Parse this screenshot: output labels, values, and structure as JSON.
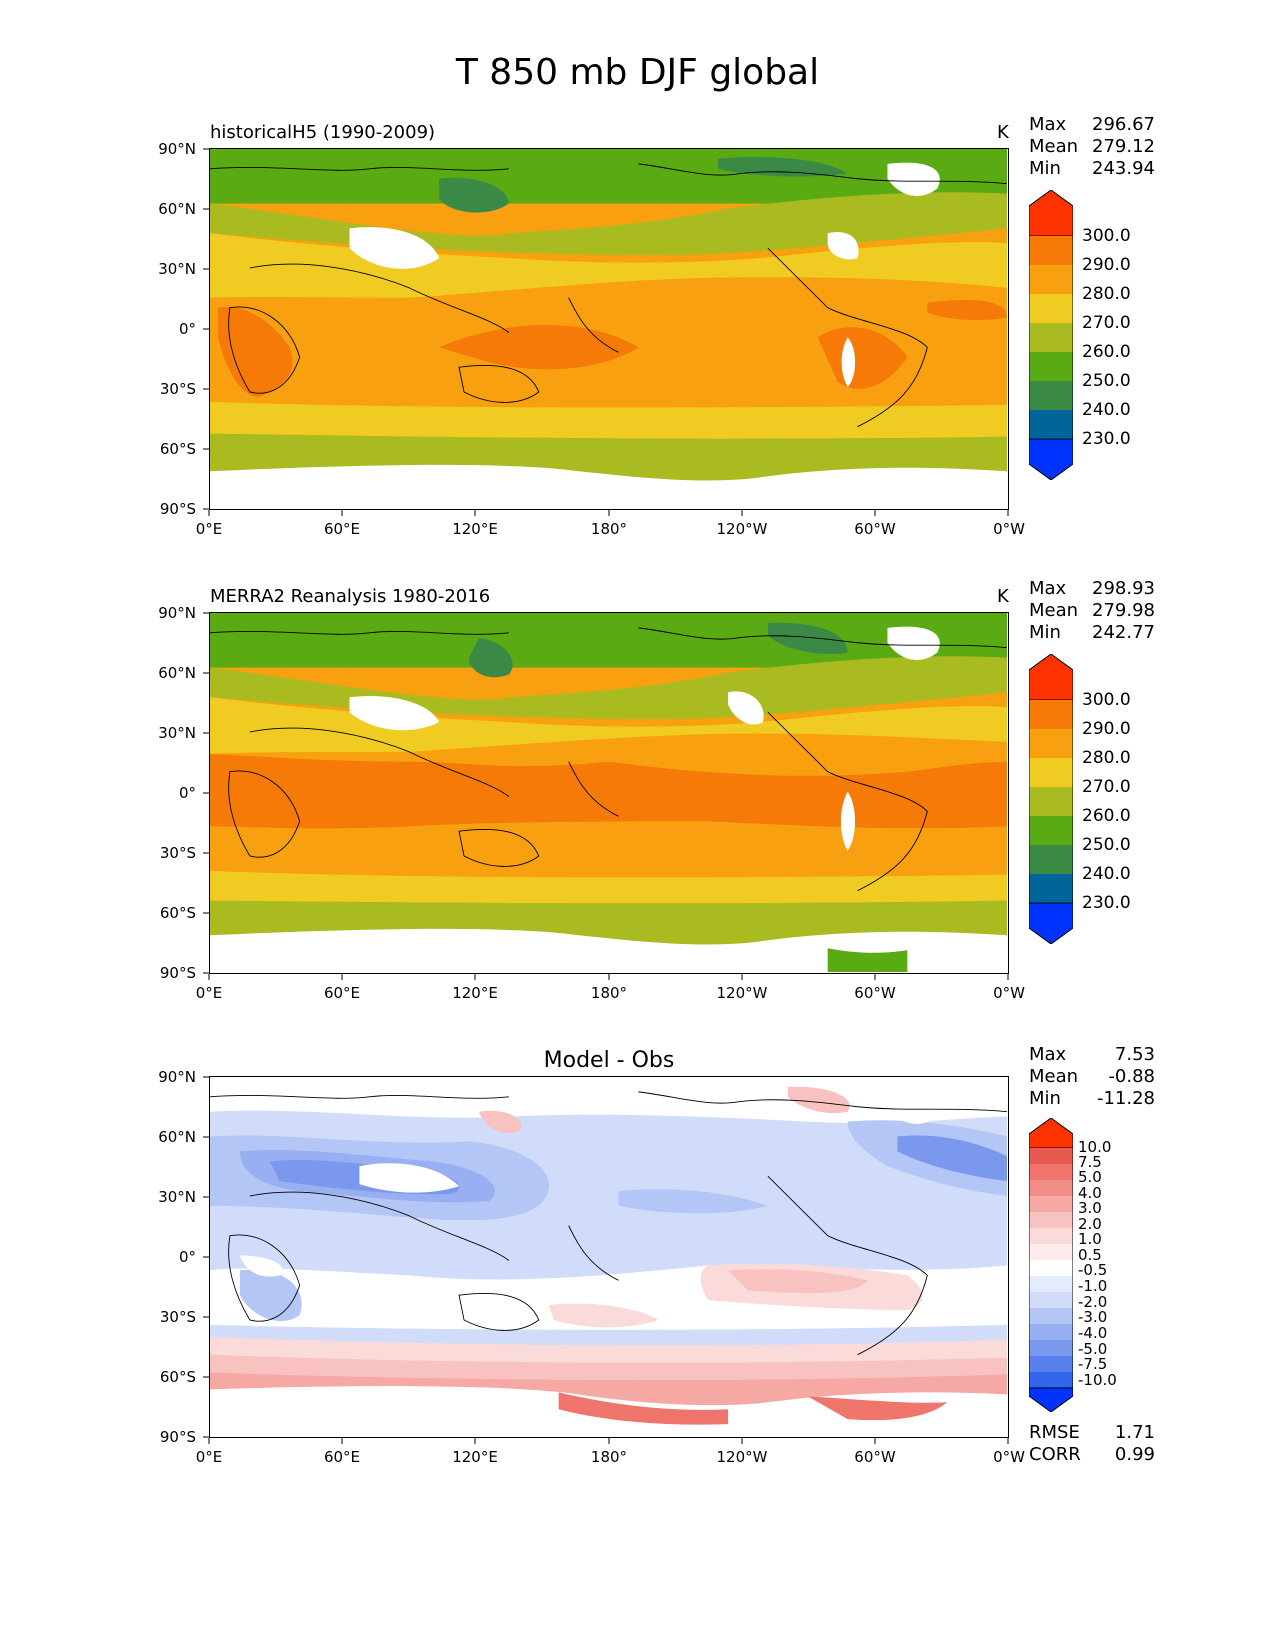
{
  "figure": {
    "title": "T 850 mb DJF global"
  },
  "lat_ticks": [
    "90°N",
    "60°N",
    "30°N",
    "0°",
    "30°S",
    "60°S",
    "90°S"
  ],
  "lon_ticks": [
    "0°E",
    "60°E",
    "120°E",
    "180°",
    "120°W",
    "60°W",
    "0°W"
  ],
  "panels": [
    {
      "title": "historicalH5 (1990-2009)",
      "units": "K",
      "stats": [
        {
          "label": "Max",
          "value": "296.67"
        },
        {
          "label": "Mean",
          "value": "279.12"
        },
        {
          "label": "Min",
          "value": "243.94"
        }
      ],
      "colorbar": [
        "300.0",
        "290.0",
        "280.0",
        "270.0",
        "260.0",
        "250.0",
        "240.0",
        "230.0"
      ]
    },
    {
      "title": "MERRA2 Reanalysis 1980-2016",
      "units": "K",
      "stats": [
        {
          "label": "Max",
          "value": "298.93"
        },
        {
          "label": "Mean",
          "value": "279.98"
        },
        {
          "label": "Min",
          "value": "242.77"
        }
      ],
      "colorbar": [
        "300.0",
        "290.0",
        "280.0",
        "270.0",
        "260.0",
        "250.0",
        "240.0",
        "230.0"
      ]
    },
    {
      "title": "Model - Obs",
      "stats": [
        {
          "label": "Max",
          "value": "7.53"
        },
        {
          "label": "Mean",
          "value": "-0.88"
        },
        {
          "label": "Min",
          "value": "-11.28"
        }
      ],
      "colorbar": [
        "10.0",
        "7.5",
        "5.0",
        "4.0",
        "3.0",
        "2.0",
        "1.0",
        "0.5",
        "-0.5",
        "-1.0",
        "-2.0",
        "-3.0",
        "-4.0",
        "-5.0",
        "-7.5",
        "-10.0"
      ],
      "metrics": [
        {
          "label": "RMSE",
          "value": "1.71"
        },
        {
          "label": "CORR",
          "value": "0.99"
        }
      ]
    }
  ],
  "colors": {
    "abs_scale": [
      "#0033ff",
      "#006699",
      "#3a8a46",
      "#5aaa14",
      "#aabb22",
      "#f0cc22",
      "#f8a010",
      "#f57a08",
      "#ff3300"
    ],
    "diff_scale": [
      "#0033ff",
      "#3366ee",
      "#5a80ee",
      "#7a98ee",
      "#98b0f2",
      "#b4c6f6",
      "#d0dcfa",
      "#ffffff",
      "#fbdada",
      "#f8c2c0",
      "#f5a8a4",
      "#f28e88",
      "#ee746c",
      "#e85a50",
      "#ff3300"
    ]
  },
  "chart_data": [
    {
      "type": "heatmap",
      "title": "historicalH5 (1990-2009)",
      "units": "K",
      "x": [
        "0°E",
        "60°E",
        "120°E",
        "180°",
        "120°W",
        "60°W",
        "0°W"
      ],
      "y": [
        "90°N",
        "60°N",
        "30°N",
        "0°",
        "30°S",
        "60°S",
        "90°S"
      ],
      "levels": [
        230,
        240,
        250,
        260,
        270,
        280,
        290,
        300
      ],
      "stats": {
        "max": 296.67,
        "mean": 279.12,
        "min": 243.94
      }
    },
    {
      "type": "heatmap",
      "title": "MERRA2 Reanalysis 1980-2016",
      "units": "K",
      "x": [
        "0°E",
        "60°E",
        "120°E",
        "180°",
        "120°W",
        "60°W",
        "0°W"
      ],
      "y": [
        "90°N",
        "60°N",
        "30°N",
        "0°",
        "30°S",
        "60°S",
        "90°S"
      ],
      "levels": [
        230,
        240,
        250,
        260,
        270,
        280,
        290,
        300
      ],
      "stats": {
        "max": 298.93,
        "mean": 279.98,
        "min": 242.77
      }
    },
    {
      "type": "heatmap",
      "title": "Model - Obs",
      "x": [
        "0°E",
        "60°E",
        "120°E",
        "180°",
        "120°W",
        "60°W",
        "0°W"
      ],
      "y": [
        "90°N",
        "60°N",
        "30°N",
        "0°",
        "30°S",
        "60°S",
        "90°S"
      ],
      "levels": [
        -10,
        -7.5,
        -5,
        -4,
        -3,
        -2,
        -1,
        -0.5,
        0.5,
        1,
        2,
        3,
        4,
        5,
        7.5,
        10
      ],
      "stats": {
        "max": 7.53,
        "mean": -0.88,
        "min": -11.28,
        "rmse": 1.71,
        "corr": 0.99
      }
    }
  ]
}
